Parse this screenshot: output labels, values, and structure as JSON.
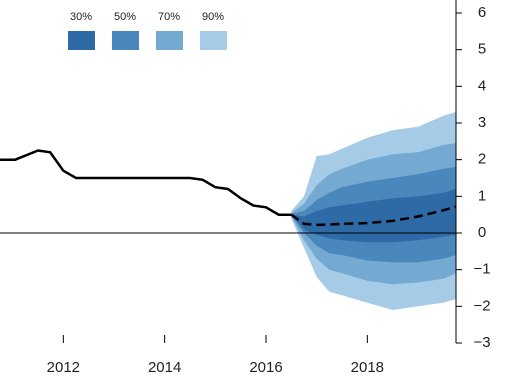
{
  "chart_data": {
    "type": "fan",
    "history": {
      "x": [
        2010.75,
        2011.05,
        2011.5,
        2011.74,
        2012.0,
        2012.25,
        2014.5,
        2014.75,
        2015.0,
        2015.25,
        2015.5,
        2015.75,
        2016.0,
        2016.25,
        2016.5
      ],
      "values": [
        2.0,
        2.0,
        2.25,
        2.2,
        1.7,
        1.5,
        1.5,
        1.45,
        1.25,
        1.2,
        0.95,
        0.75,
        0.7,
        0.5,
        0.5
      ],
      "color": "#000000"
    },
    "forecast": {
      "x": [
        2016.5,
        2016.75,
        2017.0,
        2017.25,
        2017.5,
        2018.0,
        2018.5,
        2019.0,
        2019.5,
        2019.75
      ],
      "values": [
        0.5,
        0.25,
        0.22,
        0.23,
        0.25,
        0.27,
        0.33,
        0.45,
        0.62,
        0.72
      ],
      "color": "#000000"
    },
    "bands": [
      {
        "name": "90%",
        "color": "#a6cbe6",
        "upper": [
          0.6,
          1.0,
          2.1,
          2.15,
          2.3,
          2.6,
          2.8,
          2.9,
          3.2,
          3.3
        ],
        "lower": [
          0.4,
          -0.4,
          -1.2,
          -1.6,
          -1.7,
          -1.9,
          -2.1,
          -2.0,
          -1.9,
          -1.8
        ]
      },
      {
        "name": "70%",
        "color": "#74a9d1",
        "upper": [
          0.55,
          0.8,
          1.3,
          1.6,
          1.75,
          2.0,
          2.15,
          2.2,
          2.4,
          2.45
        ],
        "lower": [
          0.45,
          -0.2,
          -0.7,
          -1.0,
          -1.1,
          -1.3,
          -1.4,
          -1.35,
          -1.25,
          -1.1
        ]
      },
      {
        "name": "50%",
        "color": "#4a87bd",
        "upper": [
          0.52,
          0.6,
          0.9,
          1.1,
          1.25,
          1.4,
          1.5,
          1.6,
          1.75,
          1.8
        ],
        "lower": [
          0.48,
          0.0,
          -0.35,
          -0.55,
          -0.6,
          -0.75,
          -0.8,
          -0.8,
          -0.7,
          -0.6
        ]
      },
      {
        "name": "30%",
        "color": "#2e6aa5",
        "upper": [
          0.5,
          0.45,
          0.6,
          0.7,
          0.75,
          0.85,
          0.95,
          1.0,
          1.1,
          1.2
        ],
        "lower": [
          0.5,
          0.1,
          -0.05,
          -0.15,
          -0.2,
          -0.25,
          -0.25,
          -0.2,
          -0.1,
          -0.05
        ]
      }
    ],
    "legend_order": [
      3,
      2,
      1,
      0
    ],
    "xlim": [
      2010.75,
      2019.75
    ],
    "xticks": [
      2012,
      2014,
      2016,
      2018
    ],
    "ylim": [
      -3,
      6.3
    ],
    "yticks": [
      {
        "value": -3,
        "label": "−3"
      },
      {
        "value": -2,
        "label": "−2"
      },
      {
        "value": -1,
        "label": "−1"
      },
      0,
      1,
      2,
      3,
      4,
      5,
      6
    ],
    "hline": 0
  }
}
